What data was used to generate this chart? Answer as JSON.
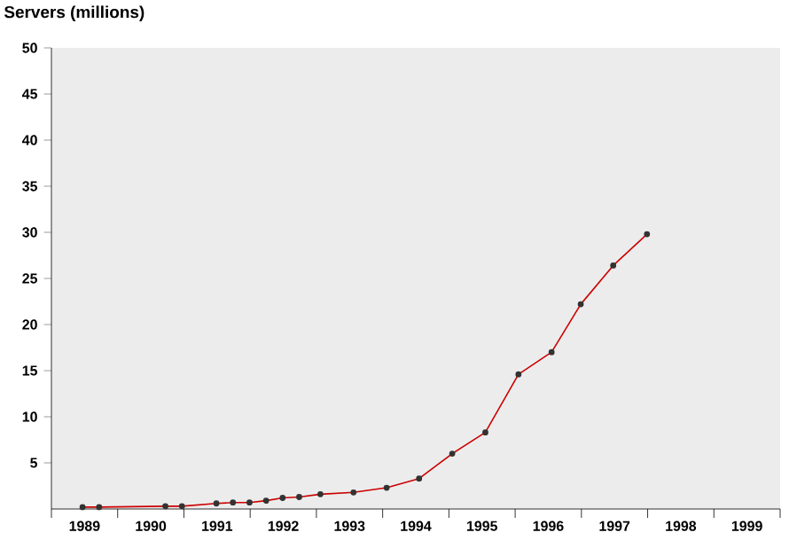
{
  "chart_data": {
    "type": "line",
    "title": "Servers (millions)",
    "x": [
      1989.47,
      1989.72,
      1990.72,
      1990.97,
      1991.49,
      1991.74,
      1991.99,
      1992.24,
      1992.49,
      1992.74,
      1993.06,
      1993.56,
      1994.06,
      1994.55,
      1995.05,
      1995.55,
      1996.05,
      1996.55,
      1996.99,
      1997.48,
      1997.99
    ],
    "series": [
      {
        "color": "#cc0000",
        "values": [
          0.2,
          0.2,
          0.3,
          0.3,
          0.6,
          0.7,
          0.7,
          0.9,
          1.2,
          1.3,
          1.6,
          1.8,
          2.3,
          3.3,
          6.0,
          8.3,
          14.6,
          17.0,
          22.2,
          26.4,
          29.8
        ]
      }
    ],
    "marker": "circle",
    "xlim": [
      1989,
      2000
    ],
    "xticks": [
      {
        "value": 1989.5,
        "label": "1989"
      },
      {
        "value": 1990.5,
        "label": "1990"
      },
      {
        "value": 1991.5,
        "label": "1991"
      },
      {
        "value": 1992.5,
        "label": "1992"
      },
      {
        "value": 1993.5,
        "label": "1993"
      },
      {
        "value": 1994.5,
        "label": "1994"
      },
      {
        "value": 1995.5,
        "label": "1995"
      },
      {
        "value": 1996.5,
        "label": "1996"
      },
      {
        "value": 1997.5,
        "label": "1997"
      },
      {
        "value": 1998.5,
        "label": "1998"
      },
      {
        "value": 1999.5,
        "label": "1999"
      },
      {
        "value": 1989,
        "label": null
      },
      {
        "value": 1990,
        "label": null
      },
      {
        "value": 1991,
        "label": null
      },
      {
        "value": 1992,
        "label": null
      },
      {
        "value": 1993,
        "label": null
      },
      {
        "value": 1994,
        "label": null
      },
      {
        "value": 1995,
        "label": null
      },
      {
        "value": 1996,
        "label": null
      },
      {
        "value": 1997,
        "label": null
      },
      {
        "value": 1998,
        "label": null
      },
      {
        "value": 1999,
        "label": null
      },
      {
        "value": 2000,
        "label": null
      }
    ],
    "ylim": [
      0,
      50
    ],
    "yticks": [
      5,
      10,
      15,
      20,
      25,
      30,
      35,
      40,
      45,
      50
    ],
    "grid": false
  }
}
